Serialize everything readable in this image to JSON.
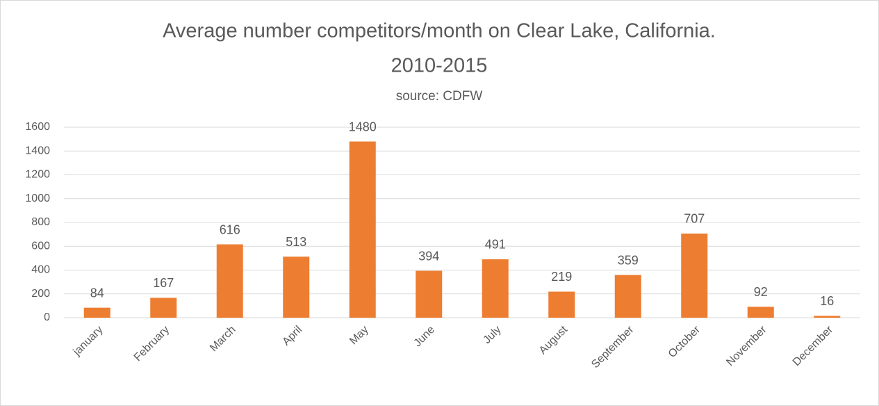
{
  "chart_data": {
    "type": "bar",
    "title": [
      "Average number competitors/month on Clear Lake, California.",
      "2010-2015"
    ],
    "subtitle": "source: CDFW",
    "categories": [
      "january",
      "February",
      "March",
      "April",
      "May",
      "June",
      "July",
      "August",
      "September",
      "October",
      "November",
      "December"
    ],
    "values": [
      84,
      167,
      616,
      513,
      1480,
      394,
      491,
      219,
      359,
      707,
      92,
      16
    ],
    "color": "#ED7D31",
    "ylim": [
      0,
      1600
    ],
    "yticks": [
      0,
      200,
      400,
      600,
      800,
      1000,
      1200,
      1400,
      1600
    ],
    "grid": true
  }
}
